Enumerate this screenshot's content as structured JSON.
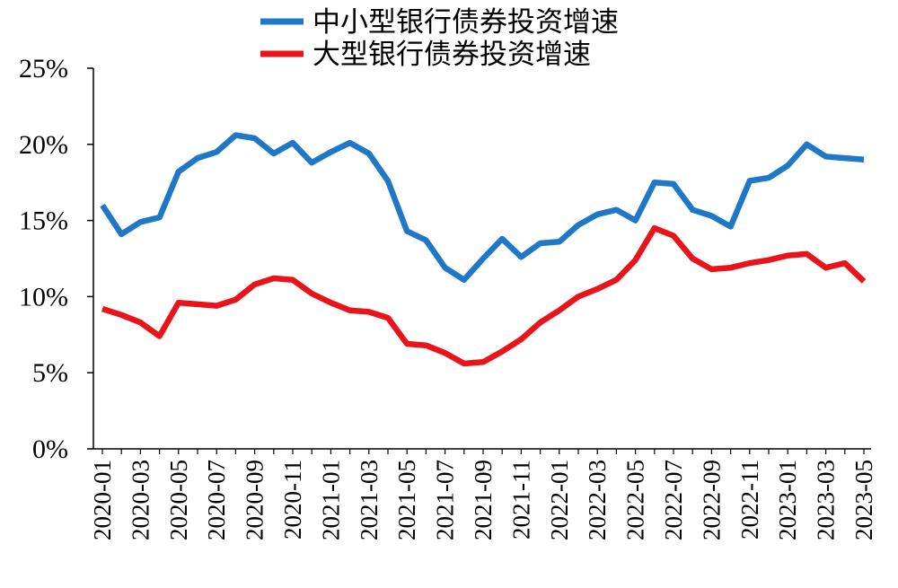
{
  "chart_data": {
    "type": "line",
    "x": [
      "2020-01",
      "2020-02",
      "2020-03",
      "2020-04",
      "2020-05",
      "2020-06",
      "2020-07",
      "2020-08",
      "2020-09",
      "2020-10",
      "2020-11",
      "2020-12",
      "2021-01",
      "2021-02",
      "2021-03",
      "2021-04",
      "2021-05",
      "2021-06",
      "2021-07",
      "2021-08",
      "2021-09",
      "2021-10",
      "2021-11",
      "2021-12",
      "2022-01",
      "2022-02",
      "2022-03",
      "2022-04",
      "2022-05",
      "2022-06",
      "2022-07",
      "2022-08",
      "2022-09",
      "2022-10",
      "2022-11",
      "2022-12",
      "2023-01",
      "2023-02",
      "2023-03",
      "2023-04",
      "2023-05"
    ],
    "x_tick_labels": [
      "2020-01",
      "2020-03",
      "2020-05",
      "2020-07",
      "2020-09",
      "2020-11",
      "2021-01",
      "2021-03",
      "2021-05",
      "2021-07",
      "2021-09",
      "2021-11",
      "2022-01",
      "2022-03",
      "2022-05",
      "2022-07",
      "2022-09",
      "2022-11",
      "2023-01",
      "2023-03",
      "2023-05"
    ],
    "y_tick_labels": [
      "0%",
      "5%",
      "10%",
      "15%",
      "20%",
      "25%"
    ],
    "ylim": [
      0,
      25
    ],
    "ytick_values": [
      0,
      5,
      10,
      15,
      20,
      25
    ],
    "grid": false,
    "legend_position": "top-center",
    "series": [
      {
        "name": "中小型银行债券投资增速",
        "color": "#1f77c8",
        "values": [
          16.0,
          14.1,
          14.9,
          15.2,
          18.2,
          19.1,
          19.5,
          20.6,
          20.4,
          19.4,
          20.1,
          18.8,
          19.5,
          20.1,
          19.4,
          17.6,
          14.3,
          13.7,
          11.9,
          11.1,
          12.5,
          13.8,
          12.6,
          13.5,
          13.6,
          14.7,
          15.4,
          15.7,
          15.0,
          17.5,
          17.4,
          15.7,
          15.3,
          14.6,
          17.6,
          17.8,
          18.6,
          20.0,
          19.2,
          19.1,
          19.0
        ]
      },
      {
        "name": "大型银行债券投资增速",
        "color": "#e8141a",
        "values": [
          9.2,
          8.8,
          8.3,
          7.4,
          9.6,
          9.5,
          9.4,
          9.8,
          10.8,
          11.2,
          11.1,
          10.2,
          9.6,
          9.1,
          9.0,
          8.6,
          6.9,
          6.8,
          6.3,
          5.6,
          5.7,
          6.4,
          7.2,
          8.3,
          9.1,
          10.0,
          10.5,
          11.1,
          12.4,
          14.5,
          14.0,
          12.5,
          11.8,
          11.9,
          12.2,
          12.4,
          12.7,
          12.8,
          11.9,
          12.2,
          11.0
        ]
      }
    ]
  }
}
